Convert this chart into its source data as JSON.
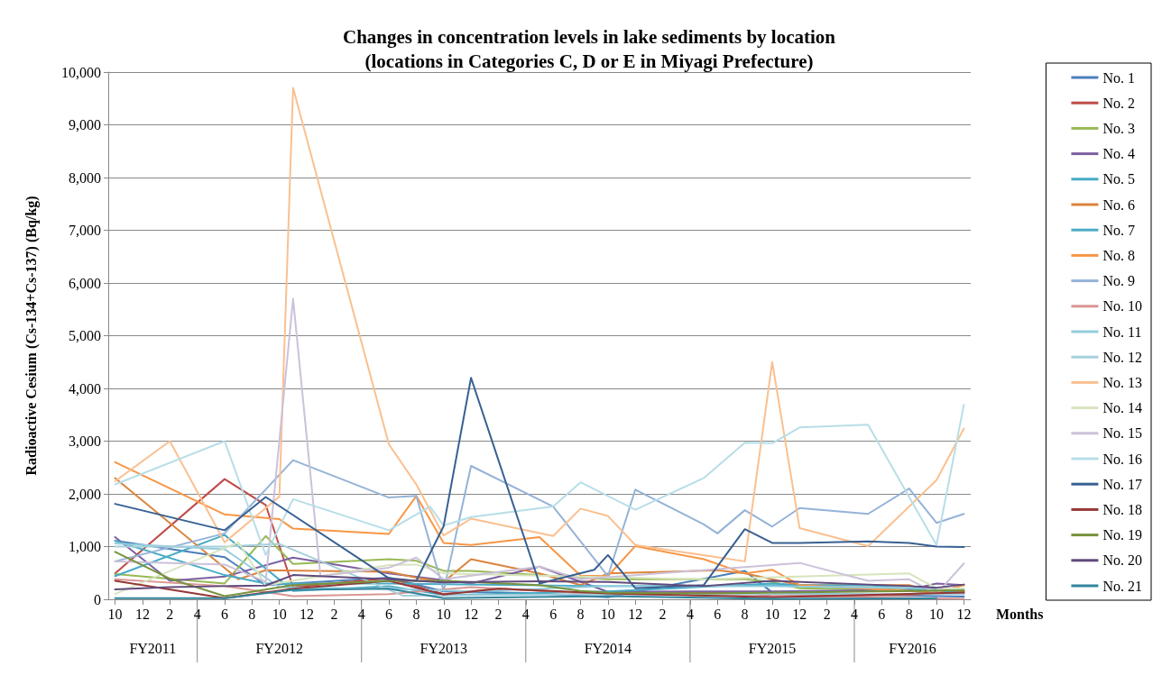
{
  "chart_data": {
    "type": "line",
    "title": "Changes in concentration levels in lake sediments by location\n(locations in Categories C, D or E in Miyagi Prefecture)",
    "xlabel": "Months",
    "ylabel": "Radioactive Cesium (Cs-134+Cs-137) (Bq/kg)",
    "annotations": [
      "FY2011",
      "FY2012",
      "FY2013",
      "FY2014",
      "FY2015",
      "FY2016"
    ],
    "xlim": [
      "2011-09-16",
      "2016-12-16"
    ],
    "xticks": [
      {
        "value": "2011-10",
        "label": "10"
      },
      {
        "value": "2011-12",
        "label": "12"
      },
      {
        "value": "2012-02",
        "label": "2"
      },
      {
        "value": "2012-04",
        "label": "4"
      },
      {
        "value": "2012-06",
        "label": "6"
      },
      {
        "value": "2012-08",
        "label": "8"
      },
      {
        "value": "2012-10",
        "label": "10"
      },
      {
        "value": "2012-12",
        "label": "12"
      },
      {
        "value": "2013-02",
        "label": "2"
      },
      {
        "value": "2013-04",
        "label": "4"
      },
      {
        "value": "2013-06",
        "label": "6"
      },
      {
        "value": "2013-08",
        "label": "8"
      },
      {
        "value": "2013-10",
        "label": "10"
      },
      {
        "value": "2013-12",
        "label": "12"
      },
      {
        "value": "2014-02",
        "label": "2"
      },
      {
        "value": "2014-04",
        "label": "4"
      },
      {
        "value": "2014-06",
        "label": "6"
      },
      {
        "value": "2014-08",
        "label": "8"
      },
      {
        "value": "2014-10",
        "label": "10"
      },
      {
        "value": "2014-12",
        "label": "12"
      },
      {
        "value": "2015-02",
        "label": "2"
      },
      {
        "value": "2015-04",
        "label": "4"
      },
      {
        "value": "2015-06",
        "label": "6"
      },
      {
        "value": "2015-08",
        "label": "8"
      },
      {
        "value": "2015-10",
        "label": "10"
      },
      {
        "value": "2015-12",
        "label": "12"
      },
      {
        "value": "2016-02",
        "label": "2"
      },
      {
        "value": "2016-04",
        "label": "4"
      },
      {
        "value": "2016-06",
        "label": "6"
      },
      {
        "value": "2016-08",
        "label": "8"
      },
      {
        "value": "2016-10",
        "label": "10"
      },
      {
        "value": "2016-12",
        "label": "12"
      }
    ],
    "ylim": [
      0,
      10000
    ],
    "yticks": [
      {
        "value": 0,
        "label": "0"
      },
      {
        "value": 1000,
        "label": "1,000"
      },
      {
        "value": 2000,
        "label": "2,000"
      },
      {
        "value": 3000,
        "label": "3,000"
      },
      {
        "value": 4000,
        "label": "4,000"
      },
      {
        "value": 5000,
        "label": "5,000"
      },
      {
        "value": 6000,
        "label": "6,000"
      },
      {
        "value": 7000,
        "label": "7,000"
      },
      {
        "value": 8000,
        "label": "8,000"
      },
      {
        "value": 9000,
        "label": "9,000"
      },
      {
        "value": 10000,
        "label": "10,000"
      }
    ],
    "grid": "y",
    "legend": "right",
    "marker": "none",
    "line_style": "solid",
    "series": [
      {
        "name": "No. 1",
        "color": "#4a7ebb",
        "x": [
          "2011-10",
          "2012-06",
          "2012-09",
          "2013-06",
          "2013-10",
          "2014-04",
          "2014-10",
          "2015-08",
          "2015-10",
          "2016-12"
        ],
        "values": [
          1110,
          800,
          270,
          410,
          150,
          120,
          40,
          540,
          130,
          50
        ]
      },
      {
        "name": "No. 2",
        "color": "#be4b48",
        "x": [
          "2011-10",
          "2012-06",
          "2012-09",
          "2012-11",
          "2013-06",
          "2013-10",
          "2014-02",
          "2014-10",
          "2015-08",
          "2015-10",
          "2016-08",
          "2016-12"
        ],
        "values": [
          490,
          2280,
          1790,
          230,
          400,
          100,
          200,
          100,
          130,
          60,
          80,
          150
        ]
      },
      {
        "name": "No. 3",
        "color": "#98b954",
        "x": [
          "2011-10",
          "2012-06",
          "2012-09",
          "2012-11",
          "2013-06",
          "2013-08",
          "2013-10",
          "2013-12",
          "2014-10",
          "2015-05",
          "2015-08",
          "2015-10",
          "2015-12",
          "2016-12"
        ],
        "values": [
          480,
          300,
          1200,
          670,
          760,
          730,
          540,
          540,
          380,
          380,
          380,
          330,
          210,
          160
        ]
      },
      {
        "name": "No. 4",
        "color": "#7d60a0",
        "x": [
          "2011-10",
          "2012-02",
          "2012-06",
          "2012-11",
          "2013-06",
          "2013-12",
          "2014-05",
          "2014-10",
          "2015-05",
          "2015-10",
          "2016-08",
          "2016-10",
          "2016-12"
        ],
        "values": [
          1180,
          350,
          430,
          790,
          490,
          300,
          620,
          140,
          150,
          150,
          180,
          300,
          270
        ]
      },
      {
        "name": "No. 5",
        "color": "#46aac5",
        "x": [
          "2011-10",
          "2012-06",
          "2012-11",
          "2013-06",
          "2013-10",
          "2014-10",
          "2015-10",
          "2016-12"
        ],
        "values": [
          440,
          1220,
          160,
          250,
          80,
          150,
          300,
          100
        ]
      },
      {
        "name": "No. 6",
        "color": "#db843d",
        "x": [
          "2011-10",
          "2012-07",
          "2012-09",
          "2013-06",
          "2013-08",
          "2013-10",
          "2013-12",
          "2014-05",
          "2014-08",
          "2014-10",
          "2015-06",
          "2015-08",
          "2015-12",
          "2016-08",
          "2016-10",
          "2016-12"
        ],
        "values": [
          2300,
          380,
          550,
          520,
          410,
          330,
          760,
          490,
          270,
          490,
          550,
          490,
          270,
          270,
          130,
          160
        ]
      },
      {
        "name": "No. 7",
        "color": "#4bacc6",
        "x": [
          "2011-10",
          "2012-06",
          "2012-09",
          "2013-06",
          "2014-10",
          "2016-05",
          "2016-12"
        ],
        "values": [
          1110,
          460,
          300,
          300,
          250,
          270,
          120
        ]
      },
      {
        "name": "No. 8",
        "color": "#f79646",
        "x": [
          "2011-10",
          "2012-06",
          "2012-10",
          "2012-11",
          "2013-06",
          "2013-08",
          "2013-10",
          "2013-12",
          "2014-05",
          "2014-08",
          "2014-10",
          "2014-12",
          "2015-05",
          "2015-08",
          "2015-10",
          "2015-12",
          "2016-10",
          "2016-12"
        ],
        "values": [
          2600,
          1610,
          1520,
          1340,
          1240,
          1960,
          1070,
          1030,
          1180,
          450,
          440,
          1010,
          760,
          490,
          560,
          270,
          130,
          270
        ]
      },
      {
        "name": "No. 9",
        "color": "#95b3d7",
        "x": [
          "2011-10",
          "2012-06",
          "2012-11",
          "2013-06",
          "2013-08",
          "2013-10",
          "2013-12",
          "2014-06",
          "2014-10",
          "2014-12",
          "2015-05",
          "2015-06",
          "2015-08",
          "2015-10",
          "2015-12",
          "2016-05",
          "2016-08",
          "2016-10",
          "2016-12"
        ],
        "values": [
          720,
          1250,
          2640,
          1930,
          1960,
          160,
          2530,
          1760,
          440,
          2080,
          1420,
          1250,
          1690,
          1380,
          1730,
          1620,
          2100,
          1450,
          1620
        ]
      },
      {
        "name": "No. 10",
        "color": "#d99694",
        "x": [
          "2011-10",
          "2012-06",
          "2012-11",
          "2013-06",
          "2013-12",
          "2014-10",
          "2016-12"
        ],
        "values": [
          380,
          250,
          60,
          100,
          230,
          100,
          10
        ]
      },
      {
        "name": "No. 11",
        "color": "#93cddd",
        "x": [
          "2011-10",
          "2012-06",
          "2012-10",
          "2013-06",
          "2013-12",
          "2014-10",
          "2015-10",
          "2016-12"
        ],
        "values": [
          1060,
          950,
          230,
          200,
          150,
          250,
          250,
          200
        ]
      },
      {
        "name": "No. 12",
        "color": "#a5cfdc",
        "x": [
          "2011-10",
          "2012-06",
          "2012-10",
          "2013-07",
          "2014-10",
          "2016-12"
        ],
        "values": [
          1000,
          1000,
          1050,
          70,
          100,
          100
        ]
      },
      {
        "name": "No. 13",
        "color": "#fac090",
        "x": [
          "2011-10",
          "2012-02",
          "2012-06",
          "2012-10",
          "2012-11",
          "2013-06",
          "2013-08",
          "2013-10",
          "2013-12",
          "2014-06",
          "2014-08",
          "2014-10",
          "2014-12",
          "2015-08",
          "2015-10",
          "2015-12",
          "2016-05",
          "2016-10",
          "2016-12"
        ],
        "values": [
          2240,
          3000,
          1080,
          1950,
          9700,
          2940,
          2180,
          1210,
          1530,
          1200,
          1720,
          1580,
          1030,
          720,
          4500,
          1350,
          1010,
          2260,
          3240
        ]
      },
      {
        "name": "No. 14",
        "color": "#d7e4bd",
        "x": [
          "2011-10",
          "2012-07",
          "2012-09",
          "2013-06",
          "2013-08",
          "2013-10",
          "2015-05",
          "2016-08",
          "2016-10",
          "2016-12"
        ],
        "values": [
          100,
          1080,
          270,
          650,
          660,
          490,
          380,
          490,
          210,
          210
        ]
      },
      {
        "name": "No. 15",
        "color": "#ccc1da",
        "x": [
          "2011-10",
          "2012-06",
          "2012-09",
          "2012-11",
          "2013-01",
          "2013-06",
          "2013-08",
          "2013-10",
          "2014-05",
          "2014-08",
          "2015-12",
          "2016-05",
          "2016-08",
          "2016-10",
          "2016-12"
        ],
        "values": [
          720,
          660,
          330,
          5700,
          440,
          600,
          790,
          380,
          620,
          380,
          690,
          350,
          380,
          100,
          680
        ]
      },
      {
        "name": "No. 16",
        "color": "#b7dee8",
        "x": [
          "2011-10",
          "2012-06",
          "2012-09",
          "2012-11",
          "2013-06",
          "2013-09",
          "2013-10",
          "2013-12",
          "2014-06",
          "2014-08",
          "2014-12",
          "2015-05",
          "2015-08",
          "2015-10",
          "2015-12",
          "2016-05",
          "2016-10",
          "2016-12"
        ],
        "values": [
          2180,
          3000,
          840,
          1900,
          1310,
          1760,
          1400,
          1560,
          1760,
          2220,
          1700,
          2300,
          2970,
          2960,
          3260,
          3310,
          1030,
          3690
        ]
      },
      {
        "name": "No. 17",
        "color": "#376092",
        "x": [
          "2011-10",
          "2012-06",
          "2012-09",
          "2013-06",
          "2013-08",
          "2013-10",
          "2013-12",
          "2014-05",
          "2014-09",
          "2014-10",
          "2014-12",
          "2015-05",
          "2015-08",
          "2015-10",
          "2015-12",
          "2016-05",
          "2016-08",
          "2016-10",
          "2016-12"
        ],
        "values": [
          1810,
          1310,
          1940,
          400,
          350,
          1390,
          4200,
          300,
          560,
          840,
          210,
          270,
          1330,
          1070,
          1070,
          1100,
          1070,
          1000,
          990
        ]
      },
      {
        "name": "No. 18",
        "color": "#953735",
        "x": [
          "2011-10",
          "2012-06",
          "2012-11",
          "2013-06",
          "2013-10",
          "2014-02",
          "2014-10",
          "2015-10",
          "2016-12"
        ],
        "values": [
          350,
          20,
          200,
          350,
          90,
          200,
          110,
          40,
          130
        ]
      },
      {
        "name": "No. 19",
        "color": "#77933c",
        "x": [
          "2011-10",
          "2012-02",
          "2012-06",
          "2012-11",
          "2013-06",
          "2013-10",
          "2014-05",
          "2014-08",
          "2014-10",
          "2015-05",
          "2016-12"
        ],
        "values": [
          900,
          390,
          60,
          270,
          350,
          350,
          270,
          160,
          130,
          110,
          170
        ]
      },
      {
        "name": "No. 20",
        "color": "#604a7b",
        "x": [
          "2011-10",
          "2012-02",
          "2012-06",
          "2012-09",
          "2012-11",
          "2013-06",
          "2013-10",
          "2014-05",
          "2014-10",
          "2015-05",
          "2015-10",
          "2016-08",
          "2016-10",
          "2016-12"
        ],
        "values": [
          190,
          230,
          250,
          260,
          460,
          380,
          320,
          340,
          330,
          250,
          350,
          250,
          220,
          280
        ]
      },
      {
        "name": "No. 21",
        "color": "#31859c",
        "x": [
          "2011-10",
          "2012-06",
          "2012-11",
          "2013-06",
          "2013-10",
          "2014-10",
          "2015-10",
          "2016-10"
        ],
        "values": [
          20,
          20,
          180,
          200,
          20,
          60,
          10,
          20
        ]
      }
    ]
  }
}
